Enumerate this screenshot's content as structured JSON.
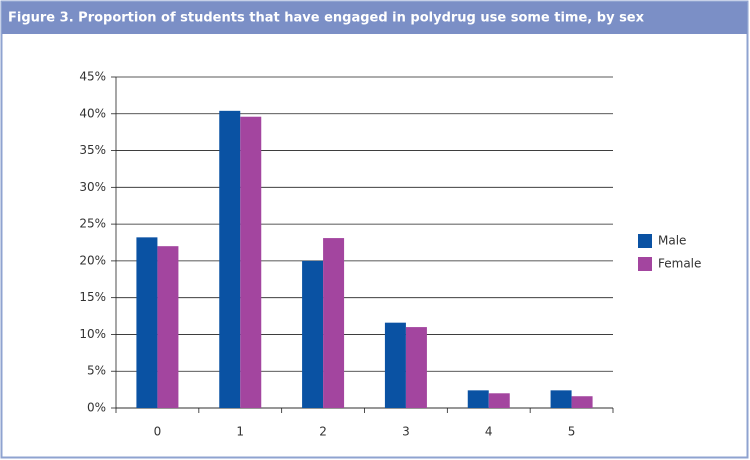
{
  "chart_data": {
    "type": "bar",
    "title": "Figure 3.  Proportion of students that have engaged in polydrug use some time, by sex",
    "categories": [
      "0",
      "1",
      "2",
      "3",
      "4",
      "5"
    ],
    "series": [
      {
        "name": "Male",
        "color": "#0a52a3",
        "values": [
          23.2,
          40.4,
          20.0,
          11.6,
          2.4,
          2.4
        ]
      },
      {
        "name": "Female",
        "color": "#a3459f",
        "values": [
          22.0,
          39.6,
          23.1,
          11.0,
          2.0,
          1.6
        ]
      }
    ],
    "ylim": [
      0,
      45
    ],
    "yticks": [
      {
        "value": 0,
        "label": "0%"
      },
      {
        "value": 5,
        "label": "5%"
      },
      {
        "value": 10,
        "label": "10%"
      },
      {
        "value": 15,
        "label": "15%"
      },
      {
        "value": 20,
        "label": "20%"
      },
      {
        "value": 25,
        "label": "25%"
      },
      {
        "value": 30,
        "label": "30%"
      },
      {
        "value": 35,
        "label": "35%"
      },
      {
        "value": 40,
        "label": "40%"
      },
      {
        "value": 45,
        "label": "45%"
      }
    ],
    "grid": true,
    "legend": "right"
  }
}
